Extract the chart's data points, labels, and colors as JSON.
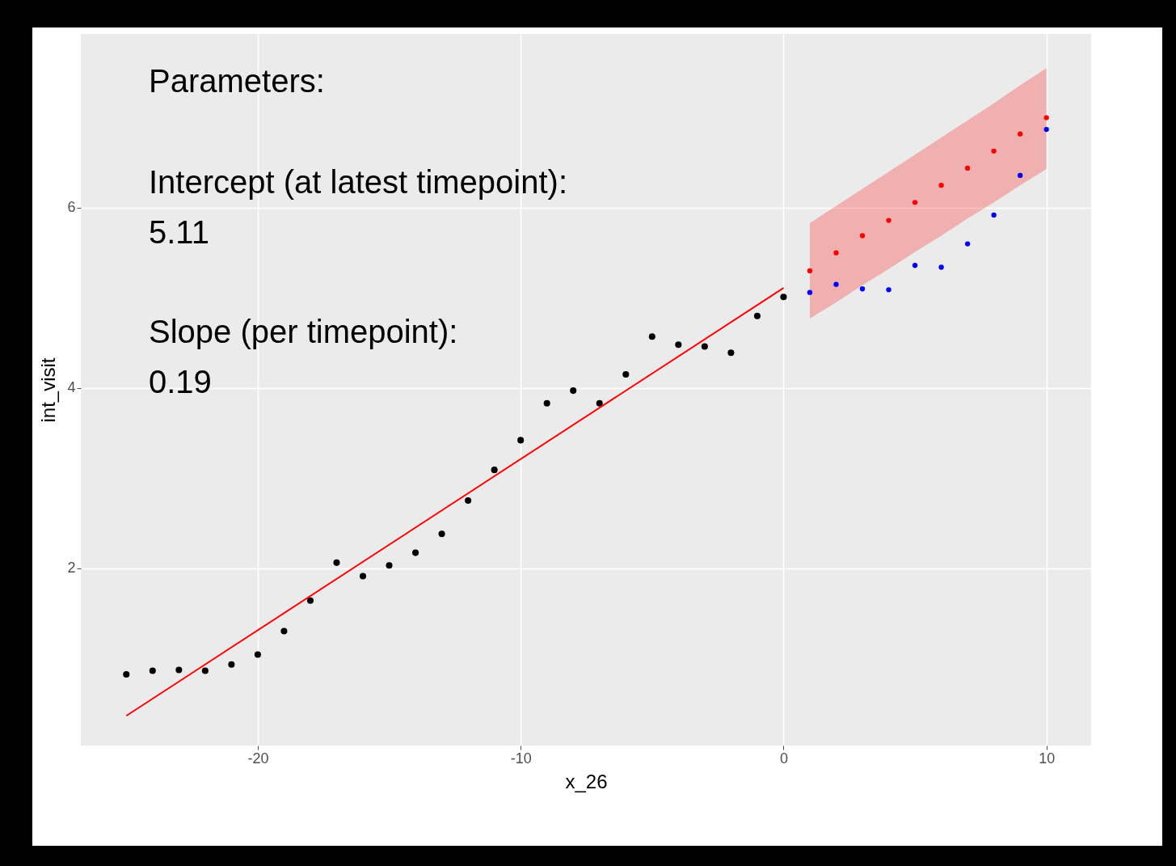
{
  "chart_data": {
    "type": "scatter",
    "xlabel": "x_26",
    "ylabel": "int_visit",
    "xlim": [
      -26.73,
      11.7
    ],
    "ylim": [
      0.03,
      7.93
    ],
    "xticks": [
      -20,
      -10,
      0,
      10
    ],
    "yticks": [
      2,
      4,
      6
    ],
    "grid": true,
    "marker": "circle",
    "annotations": [
      "Parameters:",
      "Intercept (at latest timepoint):",
      "5.11",
      "Slope (per timepoint):",
      "0.19"
    ],
    "series": [
      {
        "color": "#000000",
        "x": [
          -25,
          -24,
          -23,
          -22,
          -21,
          -20,
          -19,
          -18,
          -17,
          -16,
          -15,
          -14,
          -13,
          -12,
          -11,
          -10,
          -9,
          -8,
          -7,
          -6,
          -5,
          -4,
          -3,
          -2,
          -1,
          0
        ],
        "values": [
          0.82,
          0.86,
          0.87,
          0.86,
          0.93,
          1.04,
          1.3,
          1.64,
          2.06,
          1.91,
          2.03,
          2.17,
          2.38,
          2.75,
          3.09,
          3.42,
          3.83,
          3.97,
          3.83,
          4.15,
          4.57,
          4.48,
          4.46,
          4.39,
          4.8,
          5.01
        ]
      },
      {
        "type": "line",
        "color": "#ff0000",
        "marker": "none",
        "x": [
          -25,
          0
        ],
        "values": [
          0.36,
          5.11
        ]
      },
      {
        "color": "#ff0000",
        "x": [
          1,
          2,
          3,
          4,
          5,
          6,
          7,
          8,
          9,
          10
        ],
        "values": [
          5.3,
          5.5,
          5.69,
          5.86,
          6.06,
          6.25,
          6.44,
          6.63,
          6.82,
          7.0
        ],
        "lower": [
          4.77,
          4.95,
          5.14,
          5.32,
          5.51,
          5.69,
          5.88,
          6.06,
          6.25,
          6.43
        ],
        "upper": [
          5.83,
          6.02,
          6.21,
          6.4,
          6.59,
          6.78,
          6.97,
          7.16,
          7.36,
          7.55
        ]
      },
      {
        "color": "#0000ff",
        "x": [
          1,
          2,
          3,
          4,
          5,
          6,
          7,
          8,
          9,
          10
        ],
        "values": [
          5.06,
          5.15,
          5.1,
          5.09,
          5.36,
          5.34,
          5.6,
          5.92,
          6.36,
          6.87
        ]
      }
    ]
  }
}
